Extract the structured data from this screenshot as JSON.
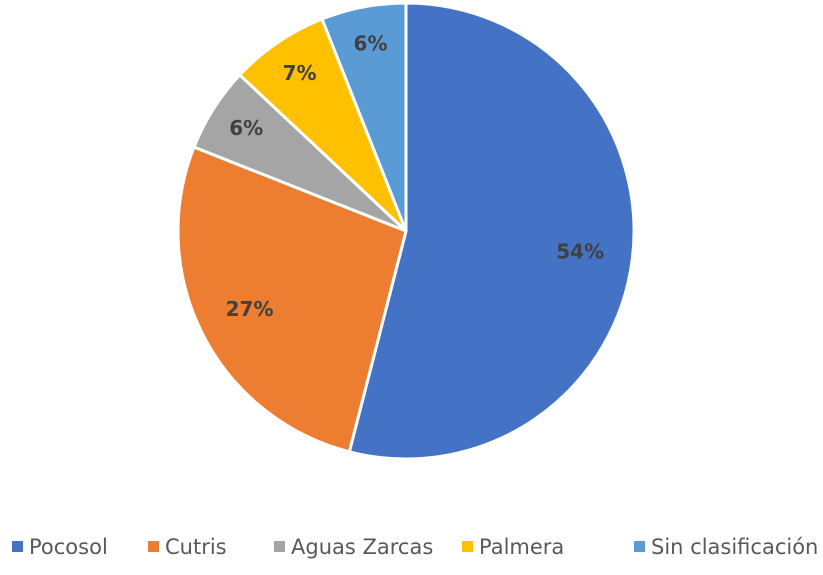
{
  "chart_data": {
    "type": "pie",
    "categories": [
      "Pocosol",
      "Cutris",
      "Aguas Zarcas",
      "Palmera",
      "Sin clasificación"
    ],
    "values": [
      54,
      27,
      6,
      7,
      6
    ],
    "value_labels": [
      "54%",
      "27%",
      "6%",
      "7%",
      "6%"
    ],
    "colors": [
      "#4472c4",
      "#ed7d31",
      "#a5a5a5",
      "#ffc000",
      "#5b9bd5"
    ],
    "legend": "bottom"
  }
}
